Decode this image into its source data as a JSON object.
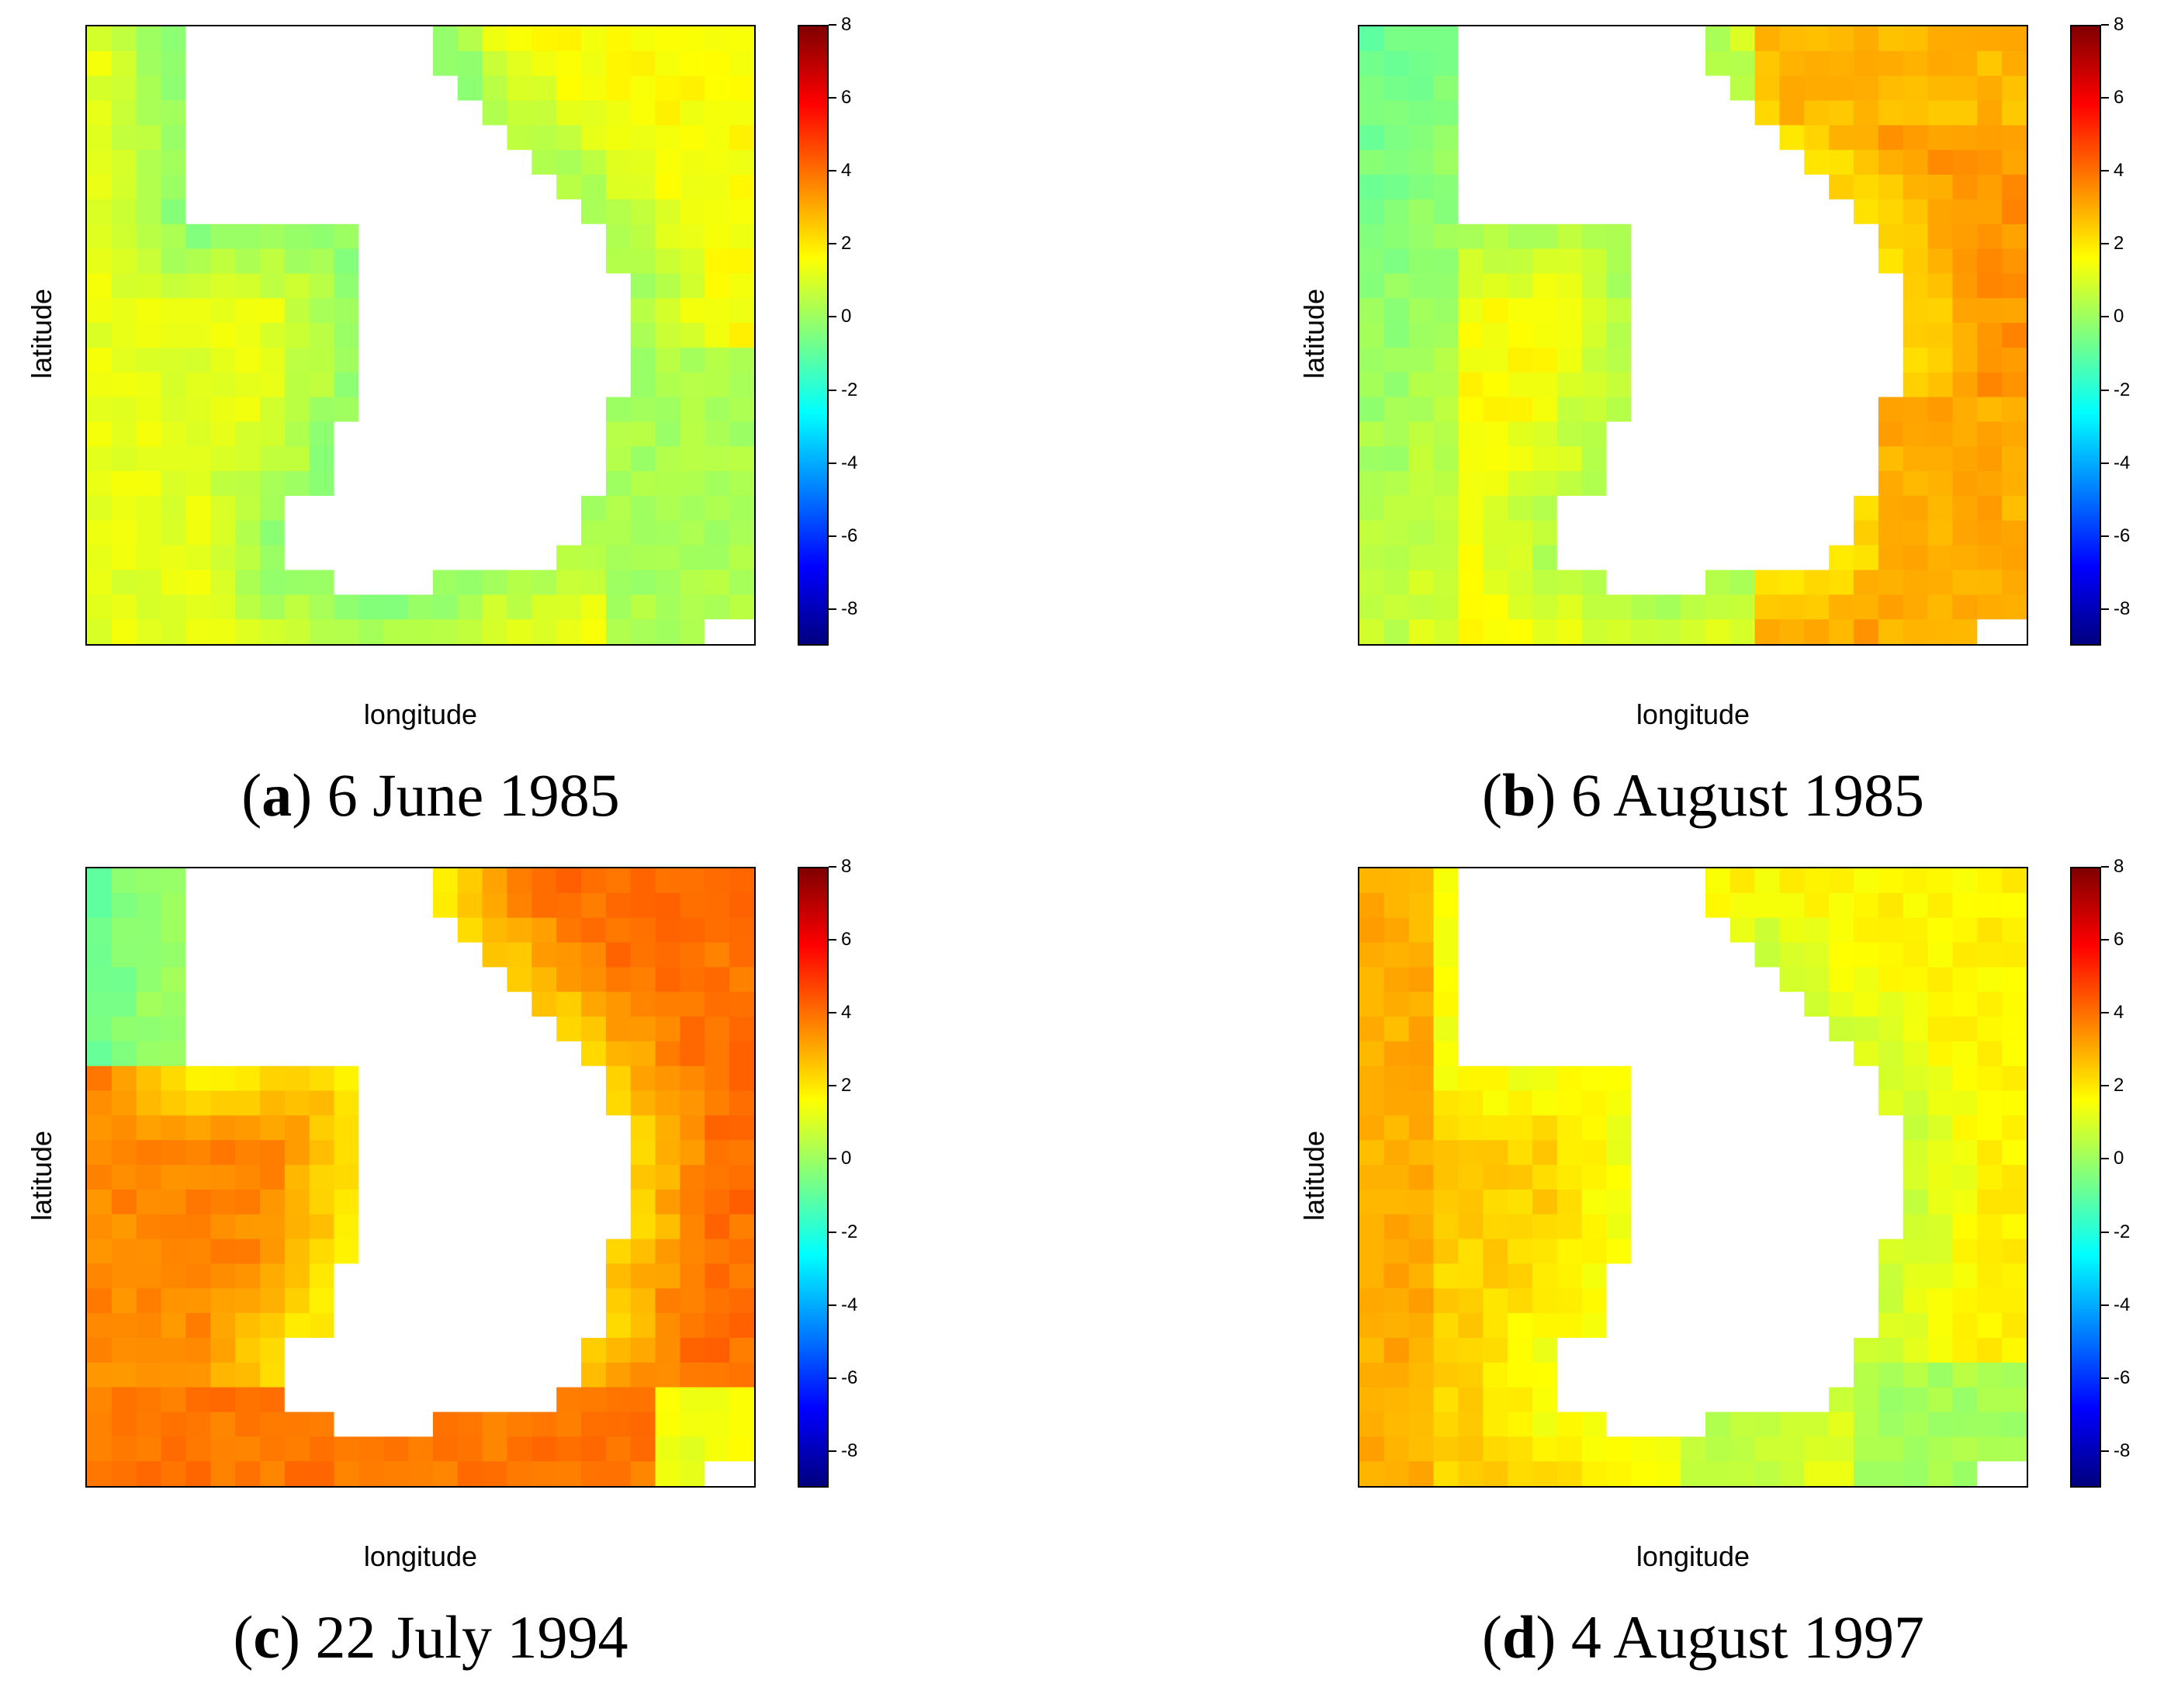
{
  "chart_data": [
    {
      "type": "heatmap",
      "panel_letter": "a",
      "caption_date": "6 June 1985",
      "xlabel": "longitude",
      "ylabel": "latitude",
      "colorbar": {
        "range": [
          -9,
          8
        ],
        "ticks": [
          8,
          6,
          4,
          2,
          0,
          -2,
          -4,
          -6,
          -8
        ]
      },
      "grid": {
        "cols": 27,
        "rows": 25
      },
      "land_mask": "Korean peninsula (white, no data)",
      "field": {
        "pattern": "coast-ring",
        "outer": 1.2,
        "coast": -0.6,
        "ns_shift": 0.0,
        "east_shift": 0.4
      }
    },
    {
      "type": "heatmap",
      "panel_letter": "b",
      "caption_date": "6 August 1985",
      "xlabel": "longitude",
      "ylabel": "latitude",
      "colorbar": {
        "range": [
          -9,
          8
        ],
        "ticks": [
          8,
          6,
          4,
          2,
          0,
          -2,
          -4,
          -6,
          -8
        ]
      },
      "grid": {
        "cols": 27,
        "rows": 25
      },
      "land_mask": "Korean peninsula (white, no data)",
      "field": {
        "pattern": "west-cool-east-warm",
        "outer": 1.6,
        "coast": 0.0,
        "ns_shift": 0.0,
        "east_shift": 1.8
      }
    },
    {
      "type": "heatmap",
      "panel_letter": "c",
      "caption_date": "22 July 1994",
      "xlabel": "longitude",
      "ylabel": "latitude",
      "colorbar": {
        "range": [
          -9,
          8
        ],
        "ticks": [
          8,
          6,
          4,
          2,
          0,
          -2,
          -4,
          -6,
          -8
        ]
      },
      "grid": {
        "cols": 27,
        "rows": 25
      },
      "land_mask": "Korean peninsula (white, no data)",
      "field": {
        "pattern": "warm-nw-cool",
        "outer": 3.6,
        "coast": 1.6,
        "ns_shift": 0.0,
        "east_shift": 0.4
      }
    },
    {
      "type": "heatmap",
      "panel_letter": "d",
      "caption_date": "4 August 1997",
      "xlabel": "longitude",
      "ylabel": "latitude",
      "colorbar": {
        "range": [
          -9,
          8
        ],
        "ticks": [
          8,
          6,
          4,
          2,
          0,
          -2,
          -4,
          -6,
          -8
        ]
      },
      "grid": {
        "cols": 27,
        "rows": 25
      },
      "land_mask": "Korean peninsula (white, no data)",
      "field": {
        "pattern": "warm-sw-cool-se",
        "outer": 2.4,
        "coast": 1.2,
        "ns_shift": 0.0,
        "east_shift": -0.6
      }
    }
  ]
}
